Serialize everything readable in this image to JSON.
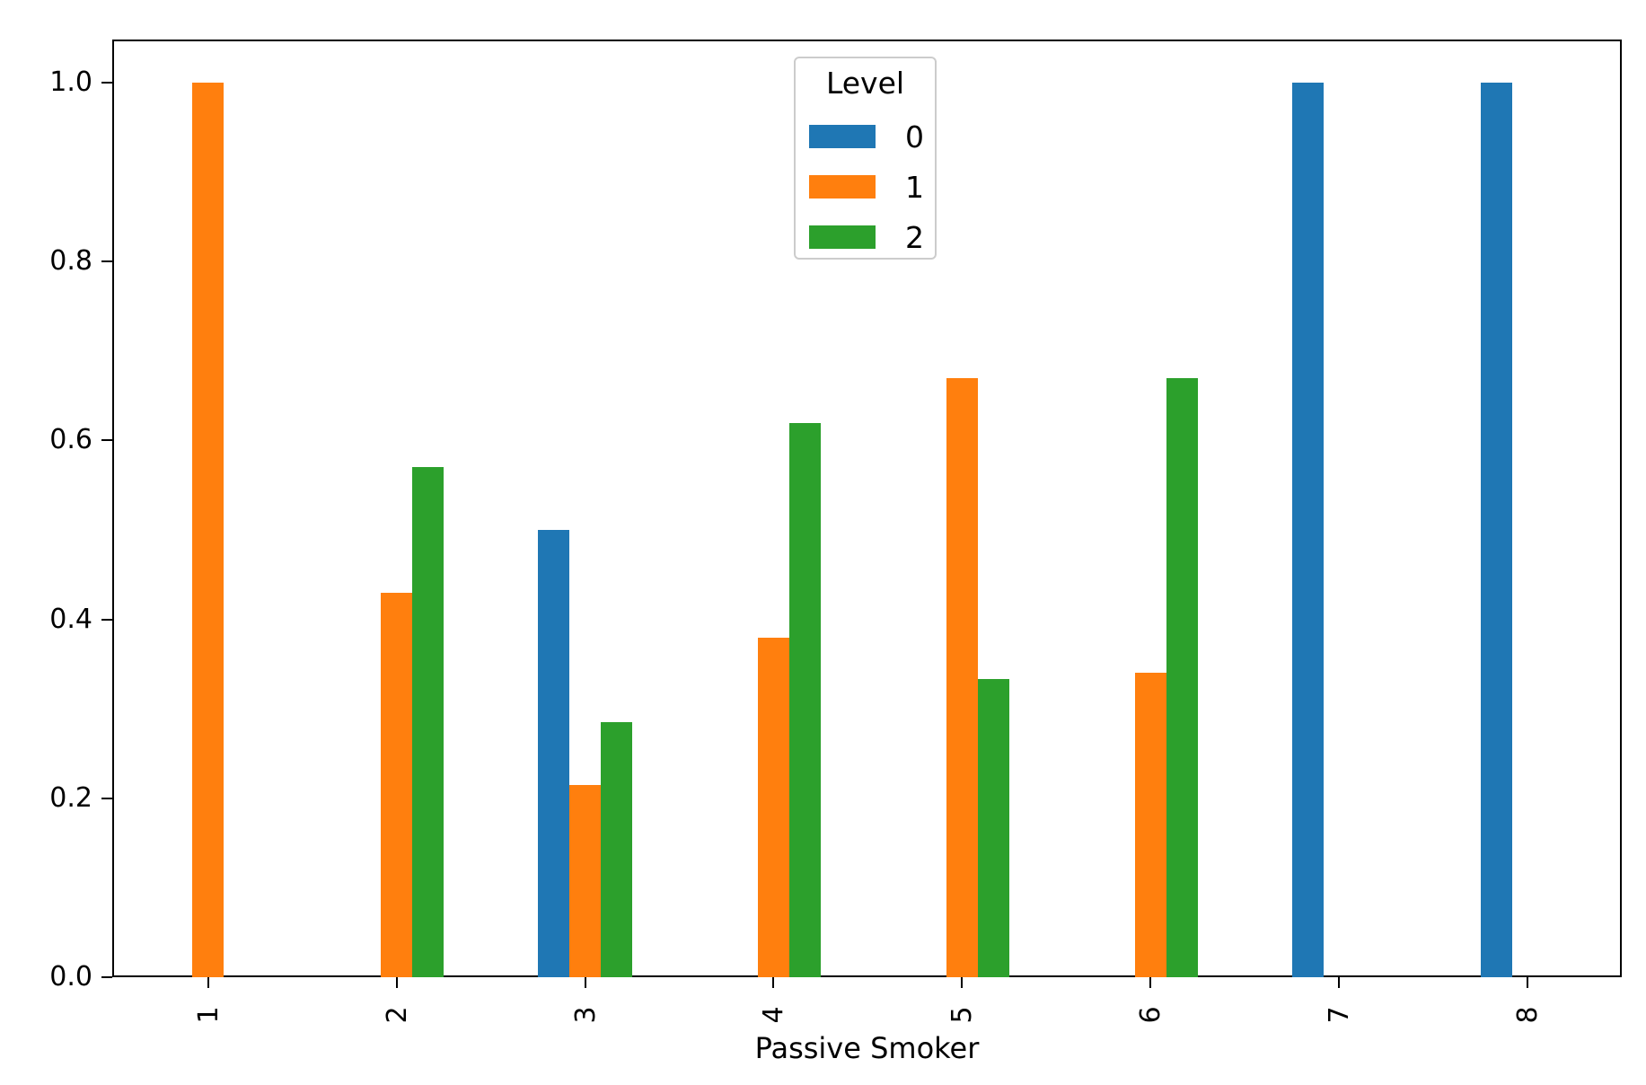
{
  "chart_data": {
    "type": "bar",
    "title": "",
    "xlabel": "Passive Smoker",
    "ylabel": "",
    "categories": [
      "1",
      "2",
      "3",
      "4",
      "5",
      "6",
      "7",
      "8"
    ],
    "series": [
      {
        "name": "0",
        "color": "#1f77b4",
        "values": [
          0,
          0,
          0.5,
          0,
          0,
          0,
          1.0,
          1.0
        ]
      },
      {
        "name": "1",
        "color": "#ff7f0e",
        "values": [
          1.0,
          0.43,
          0.215,
          0.38,
          0.67,
          0.34,
          0,
          0
        ]
      },
      {
        "name": "2",
        "color": "#2ca02c",
        "values": [
          0,
          0.57,
          0.285,
          0.62,
          0.333,
          0.67,
          0,
          0
        ]
      }
    ],
    "legend": {
      "title": "Level",
      "labels": [
        "0",
        "1",
        "2"
      ],
      "position": "upper center"
    },
    "ylim": [
      0.0,
      1.048
    ],
    "yticks": [
      "0.0",
      "0.2",
      "0.4",
      "0.6",
      "0.8",
      "1.0"
    ],
    "x_tick_rotation": 90,
    "grid": false
  },
  "colors": {
    "background": "#ffffff",
    "axis": "#000000",
    "legend_border": "#cccccc",
    "blue": "#1f77b4",
    "orange": "#ff7f0e",
    "green": "#2ca02c"
  }
}
